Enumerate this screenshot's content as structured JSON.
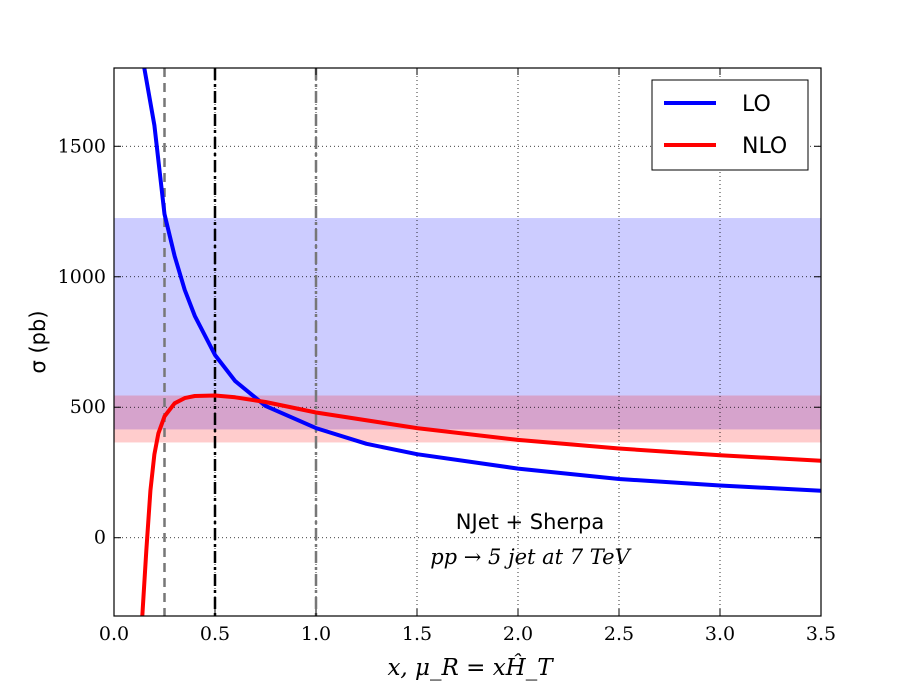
{
  "chart_data": {
    "type": "line",
    "title": "",
    "xlabel": "x, μ_R = xĤ_T",
    "ylabel": "σ (pb)",
    "xlim": [
      0.0,
      3.5
    ],
    "ylim": [
      -300,
      1800
    ],
    "xticks": [
      "0.0",
      "0.5",
      "1.0",
      "1.5",
      "2.0",
      "2.5",
      "3.0",
      "3.5"
    ],
    "yticks": [
      "0",
      "500",
      "1000",
      "1500"
    ],
    "grid": true,
    "legend_position": "top-right",
    "series": [
      {
        "name": "LO",
        "color": "#0000ff",
        "x": [
          0.15,
          0.2,
          0.25,
          0.3,
          0.35,
          0.4,
          0.5,
          0.6,
          0.75,
          1.0,
          1.25,
          1.5,
          2.0,
          2.5,
          3.0,
          3.5
        ],
        "y": [
          1800,
          1580,
          1240,
          1080,
          950,
          850,
          700,
          600,
          505,
          420,
          360,
          320,
          265,
          225,
          200,
          180
        ]
      },
      {
        "name": "NLO",
        "color": "#ff0000",
        "x": [
          0.14,
          0.16,
          0.18,
          0.2,
          0.22,
          0.25,
          0.3,
          0.35,
          0.4,
          0.5,
          0.6,
          0.75,
          1.0,
          1.5,
          2.0,
          2.5,
          3.0,
          3.5
        ],
        "y": [
          -300,
          -50,
          180,
          320,
          400,
          465,
          515,
          535,
          543,
          545,
          538,
          520,
          480,
          420,
          375,
          342,
          316,
          295
        ]
      }
    ],
    "bands": [
      {
        "name": "LO band",
        "color": "#0000ff",
        "y_range": [
          415,
          1225
        ]
      },
      {
        "name": "NLO band",
        "color": "#ff0000",
        "y_range": [
          365,
          545
        ]
      }
    ],
    "vlines": [
      {
        "x": 0.25,
        "style": "dashed",
        "color": "#777777"
      },
      {
        "x": 0.5,
        "style": "dashdot",
        "color": "#000000"
      },
      {
        "x": 1.0,
        "style": "dashdot",
        "color": "#777777"
      }
    ],
    "annotations": [
      "NJet + Sherpa",
      "pp → 5 jet at 7 TeV"
    ]
  }
}
